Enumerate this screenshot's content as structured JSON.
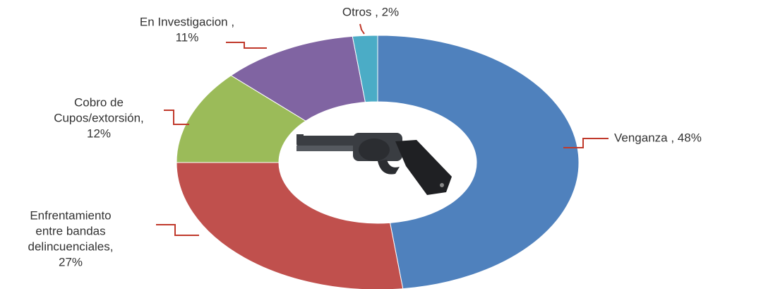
{
  "chart_data": {
    "type": "donut",
    "categories": [
      "Venganza",
      "Enfrentamiento entre bandas delincuenciales",
      "Cobro de Cupos/extorsión",
      "En Investigacion",
      "Otros"
    ],
    "values": [
      48,
      27,
      12,
      11,
      2
    ],
    "colors": [
      "#4f81bd",
      "#c0504d",
      "#9bbb59",
      "#8064a2",
      "#4bacc6"
    ],
    "labels": [
      [
        "Venganza , 48%"
      ],
      [
        "Enfrentamiento",
        "entre bandas",
        "delincuenciales,",
        "27%"
      ],
      [
        "Cobro de",
        "Cupos/extorsión,",
        "12%"
      ],
      [
        "En Investigacion ,",
        "11%"
      ],
      [
        "Otros , 2%"
      ]
    ]
  }
}
